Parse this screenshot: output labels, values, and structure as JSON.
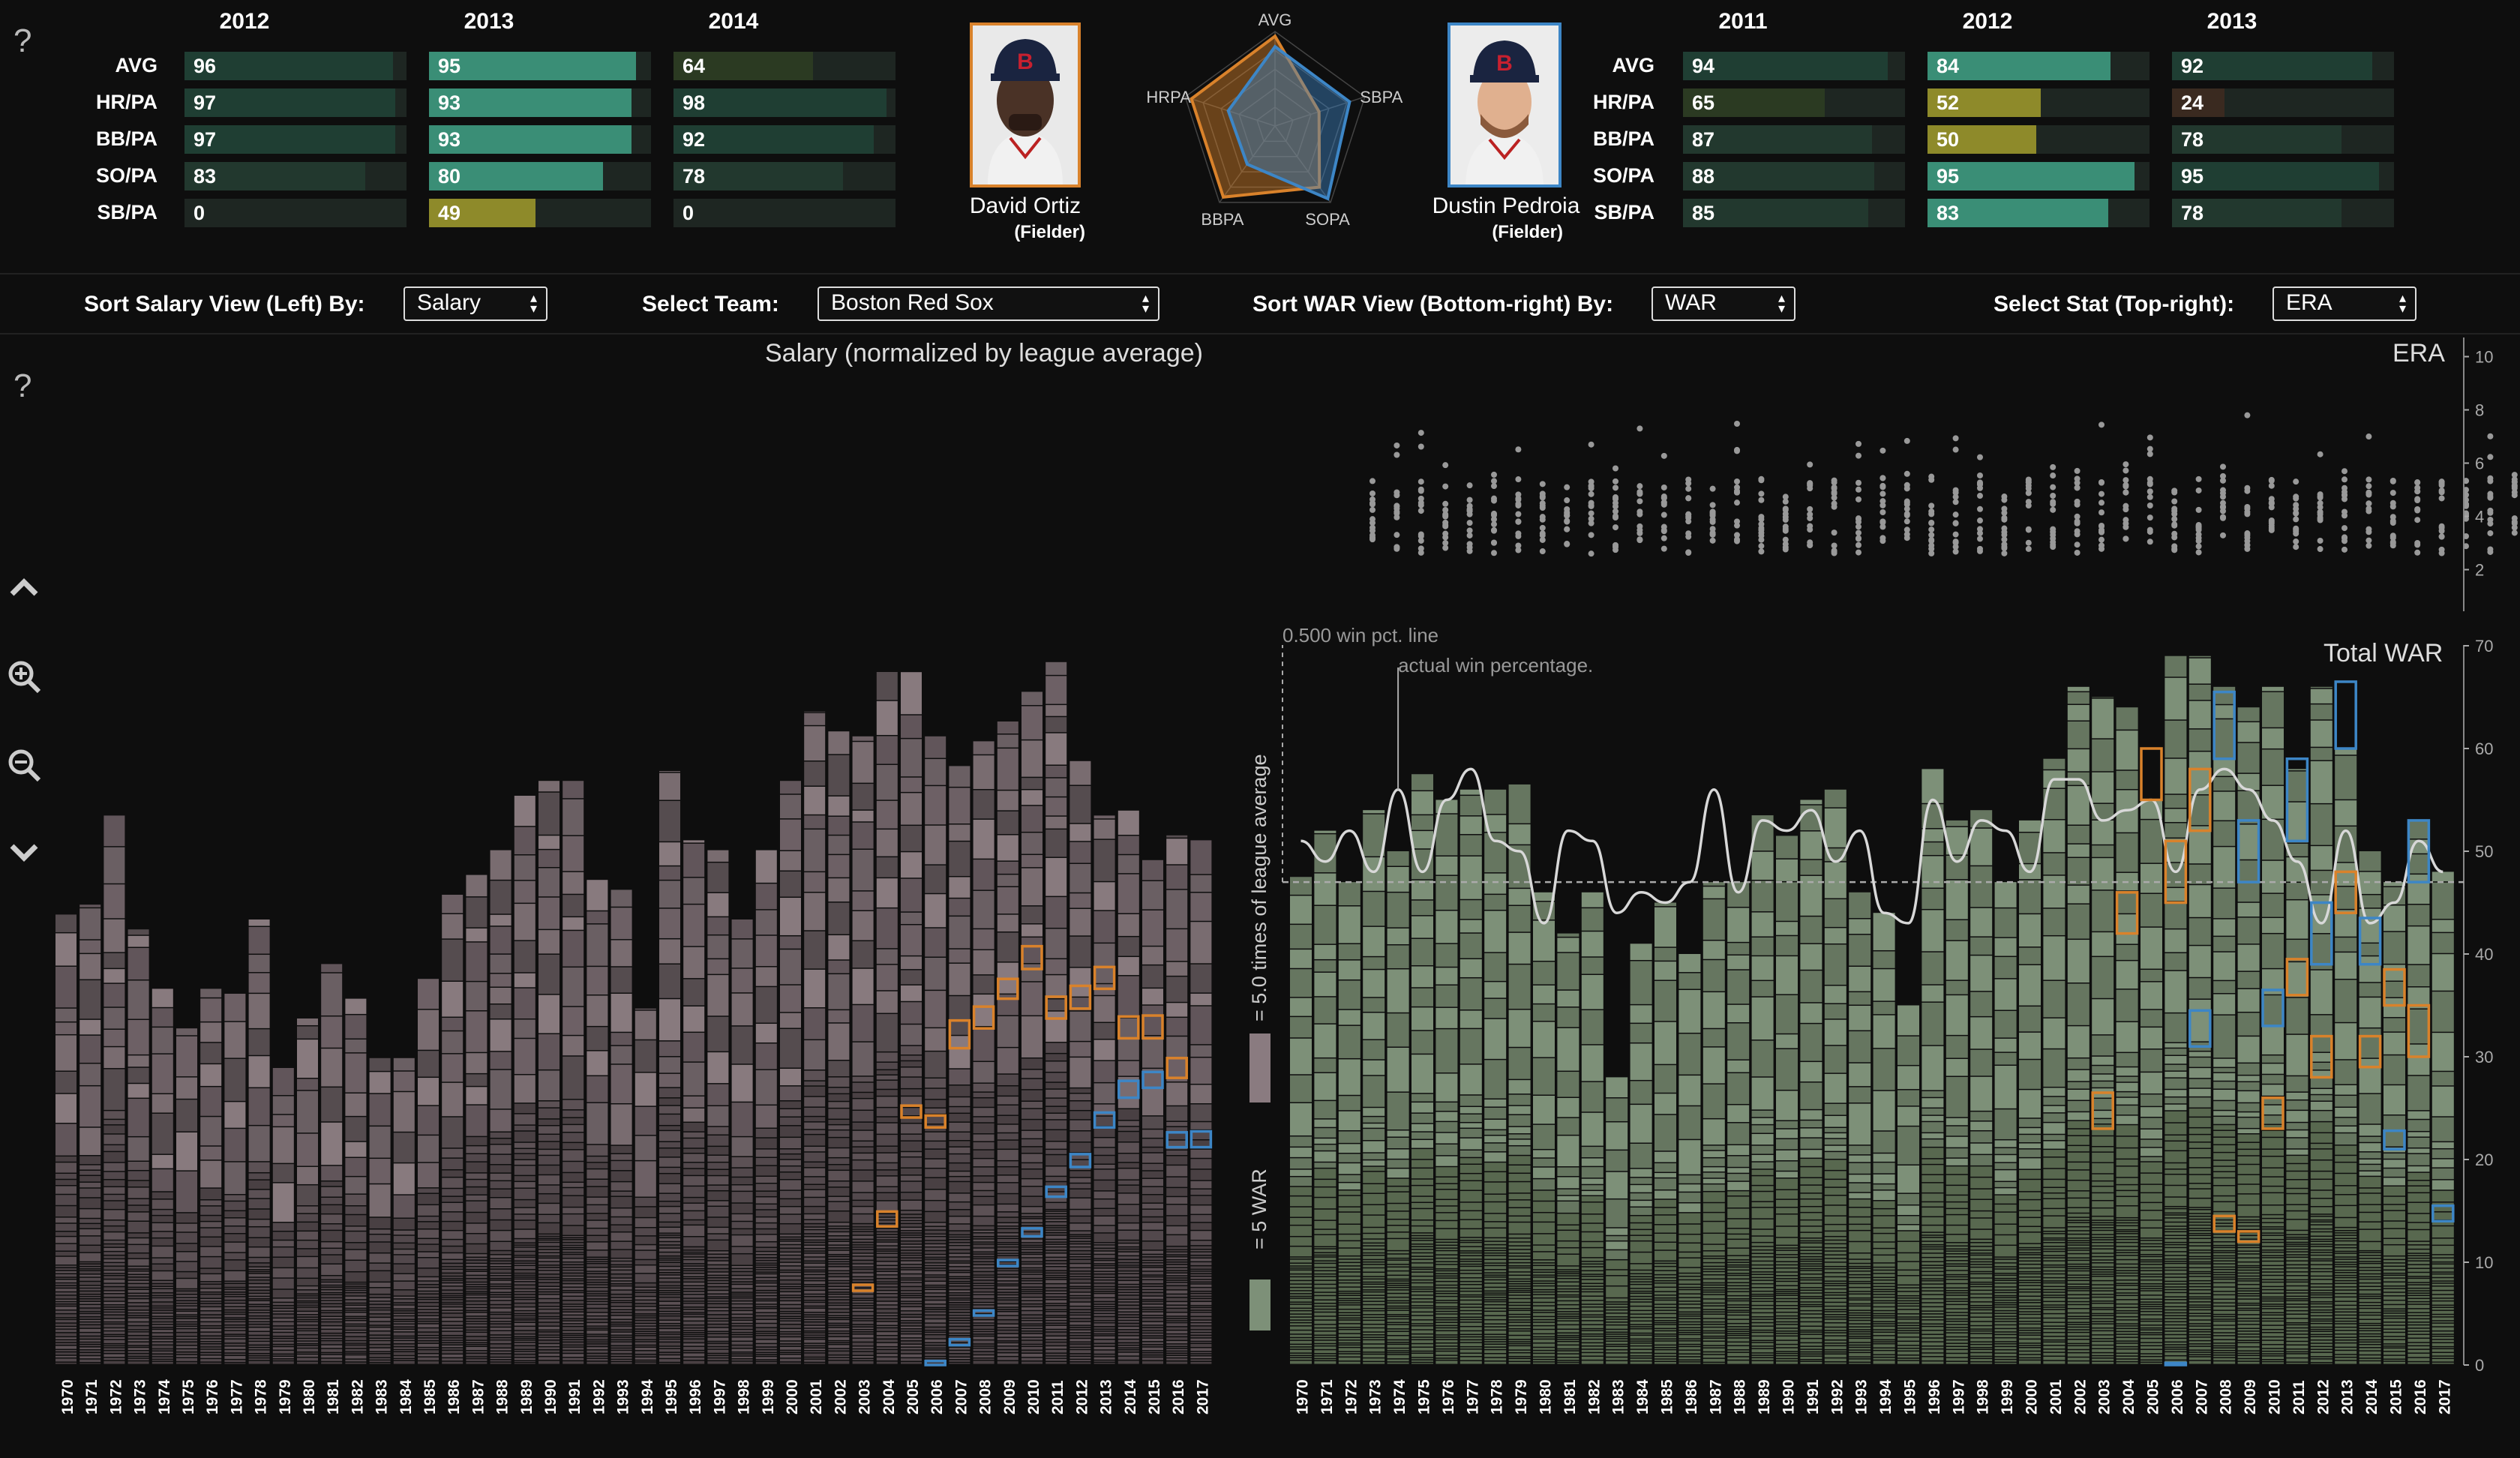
{
  "help_icon": "?",
  "left_player": {
    "name": "David Ortiz",
    "role": "(Fielder)",
    "years": [
      "2012",
      "2013",
      "2014"
    ],
    "stats": [
      "AVG",
      "HR/PA",
      "BB/PA",
      "SO/PA",
      "SB/PA"
    ],
    "values": [
      [
        96,
        97,
        97,
        83,
        0
      ],
      [
        95,
        93,
        93,
        80,
        49
      ],
      [
        64,
        98,
        92,
        78,
        0
      ]
    ],
    "highlight_year_index": 1,
    "accent": "#d9822b"
  },
  "right_player": {
    "name": "Dustin Pedroia",
    "role": "(Fielder)",
    "years": [
      "2011",
      "2012",
      "2013"
    ],
    "stats": [
      "AVG",
      "HR/PA",
      "BB/PA",
      "SO/PA",
      "SB/PA"
    ],
    "values": [
      [
        94,
        65,
        87,
        88,
        85
      ],
      [
        84,
        52,
        50,
        95,
        83
      ],
      [
        92,
        24,
        78,
        95,
        78
      ]
    ],
    "highlight_year_index": 1,
    "accent": "#3d86c6"
  },
  "radar": {
    "axes": [
      "AVG",
      "SBPA",
      "SOPA",
      "BBPA",
      "HRPA"
    ],
    "ortiz": [
      95,
      49,
      80,
      93,
      93
    ],
    "pedroia": [
      84,
      83,
      95,
      50,
      52
    ]
  },
  "controls": {
    "sort_salary_label": "Sort Salary View (Left) By:",
    "sort_salary_value": "Salary",
    "team_label": "Select Team:",
    "team_value": "Boston Red Sox",
    "sort_war_label": "Sort WAR View (Bottom-right) By:",
    "sort_war_value": "WAR",
    "stat_label": "Select Stat (Top-right):",
    "stat_value": "ERA"
  },
  "side_icons": [
    "chevron-up-icon",
    "zoom-in-icon",
    "zoom-out-icon",
    "chevron-down-icon"
  ],
  "legend": {
    "salary_text": "= 5.0 times of league average",
    "war_text": "= 5 WAR",
    "salary_color": "#8a7b80",
    "war_color": "#7d9078"
  },
  "colors": {
    "background": "#0e0e0e",
    "salary_bar": "#8a7b80",
    "war_bar": "#7d9078",
    "ortiz": "#d9822b",
    "pedroia": "#3d86c6",
    "bar_fill_high": "#3a8e76",
    "bar_fill_mid": "#4f7a35",
    "bar_fill_gold": "#8e8a2a"
  },
  "chart_data": [
    {
      "type": "bar",
      "title": "Salary (normalized by league average)",
      "stacked": true,
      "categories": [
        "1970",
        "1971",
        "1972",
        "1973",
        "1974",
        "1975",
        "1976",
        "1977",
        "1978",
        "1979",
        "1980",
        "1981",
        "1982",
        "1983",
        "1984",
        "1985",
        "1986",
        "1987",
        "1988",
        "1989",
        "1990",
        "1991",
        "1992",
        "1993",
        "1994",
        "1995",
        "1996",
        "1997",
        "1998",
        "1999",
        "2000",
        "2001",
        "2002",
        "2003",
        "2004",
        "2005",
        "2006",
        "2007",
        "2008",
        "2009",
        "2010",
        "2011",
        "2012",
        "2013",
        "2014",
        "2015",
        "2016",
        "2017"
      ],
      "values": [
        45.5,
        46.5,
        55.5,
        44,
        38,
        34,
        38,
        37.5,
        45,
        30,
        35,
        40.5,
        37,
        31,
        31,
        39,
        47.5,
        49.5,
        52,
        57.5,
        59,
        59,
        49,
        48,
        36,
        60,
        53,
        52,
        45,
        52,
        59,
        66,
        64,
        63.5,
        70,
        70,
        63.5,
        60.5,
        63,
        65,
        68,
        71,
        61,
        55.5,
        56,
        51,
        53.5,
        53
      ],
      "ortiz_years": [
        "2003",
        "2004",
        "2005",
        "2006",
        "2007",
        "2008",
        "2009",
        "2010",
        "2011",
        "2012",
        "2013",
        "2014",
        "2015",
        "2016"
      ],
      "pedroia_years": [
        "2006",
        "2007",
        "2008",
        "2009",
        "2010",
        "2011",
        "2012",
        "2013",
        "2014",
        "2015",
        "2016",
        "2017"
      ]
    },
    {
      "type": "scatter",
      "title": "ERA",
      "x_range": [
        "1970",
        "2017"
      ],
      "ylim": [
        1,
        11
      ],
      "yticks": [
        2,
        4,
        6,
        8,
        10
      ]
    },
    {
      "type": "bar",
      "title": "Total WAR",
      "stacked": true,
      "categories": [
        "1970",
        "1971",
        "1972",
        "1973",
        "1974",
        "1975",
        "1976",
        "1977",
        "1978",
        "1979",
        "1980",
        "1981",
        "1982",
        "1983",
        "1984",
        "1985",
        "1986",
        "1987",
        "1988",
        "1989",
        "1990",
        "1991",
        "1992",
        "1993",
        "1994",
        "1995",
        "1996",
        "1997",
        "1998",
        "1999",
        "2000",
        "2001",
        "2002",
        "2003",
        "2004",
        "2005",
        "2006",
        "2007",
        "2008",
        "2009",
        "2010",
        "2011",
        "2012",
        "2013",
        "2014",
        "2015",
        "2016",
        "2017"
      ],
      "values": [
        47.5,
        52,
        47,
        54,
        50,
        57.5,
        55,
        56,
        56,
        56.5,
        46,
        42,
        46,
        28,
        41,
        45,
        40,
        47,
        47,
        53.5,
        51.5,
        55,
        56,
        46,
        44,
        35,
        58,
        53,
        54,
        47,
        53,
        59,
        66,
        65,
        64,
        55,
        69,
        69,
        66,
        64,
        66,
        58,
        66,
        60,
        50,
        47,
        53,
        48
      ],
      "ylim": [
        0,
        70
      ],
      "yticks": [
        0,
        10,
        20,
        30,
        40,
        50,
        60,
        70
      ],
      "annotations": [
        "0.500 win pct. line",
        "actual win percentage."
      ],
      "win_pct_line": 47,
      "actual_win_pct": [
        51,
        49,
        52,
        48,
        56,
        48,
        55,
        58,
        51,
        50,
        43,
        52,
        51,
        44,
        46,
        45,
        47,
        56,
        46,
        53,
        52,
        54,
        49,
        52,
        44,
        43,
        55,
        49,
        53,
        52,
        48,
        57,
        57,
        53,
        54,
        55,
        48,
        56,
        58,
        56,
        53,
        49,
        43,
        52,
        43,
        45,
        51,
        48
      ]
    }
  ]
}
